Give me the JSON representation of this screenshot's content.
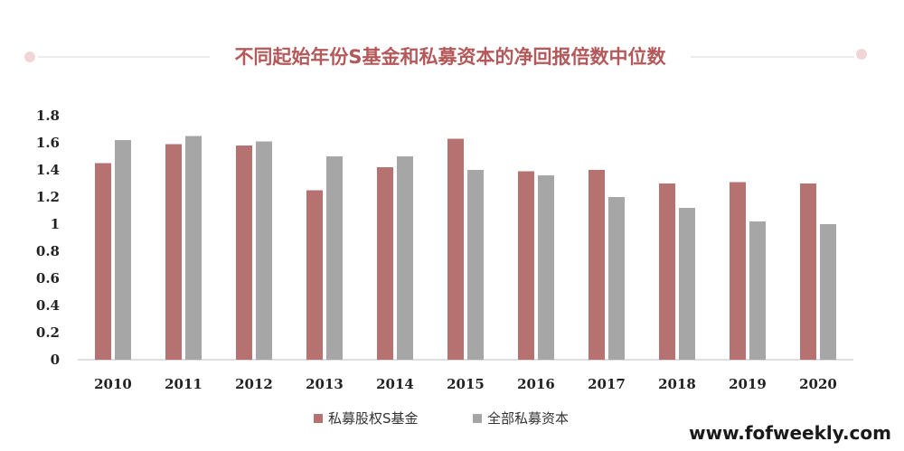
{
  "chart_data": {
    "type": "bar",
    "title": "不同起始年份S基金和私募资本的净回报倍数中位数",
    "categories": [
      "2010",
      "2011",
      "2012",
      "2013",
      "2014",
      "2015",
      "2016",
      "2017",
      "2018",
      "2019",
      "2020"
    ],
    "series": [
      {
        "name": "私募股权S基金",
        "color": "#b57270",
        "values": [
          1.45,
          1.59,
          1.58,
          1.25,
          1.42,
          1.63,
          1.39,
          1.4,
          1.3,
          1.31,
          1.3
        ]
      },
      {
        "name": "全部私募资本",
        "color": "#a6a6a6",
        "values": [
          1.62,
          1.65,
          1.61,
          1.5,
          1.5,
          1.4,
          1.36,
          1.2,
          1.12,
          1.02,
          1.0
        ]
      }
    ],
    "yticks": [
      "0",
      "0.2",
      "0.4",
      "0.6",
      "0.8",
      "1",
      "1.2",
      "1.4",
      "1.6",
      "1.8"
    ],
    "ylim": [
      0,
      1.8
    ],
    "grid": false,
    "legend_position": "bottom"
  },
  "watermark": "www.fofweekly.com",
  "colors": {
    "title": "#b4585a",
    "decor_dot": "#f2d6d6",
    "decor_line": "#d9d9d9"
  }
}
